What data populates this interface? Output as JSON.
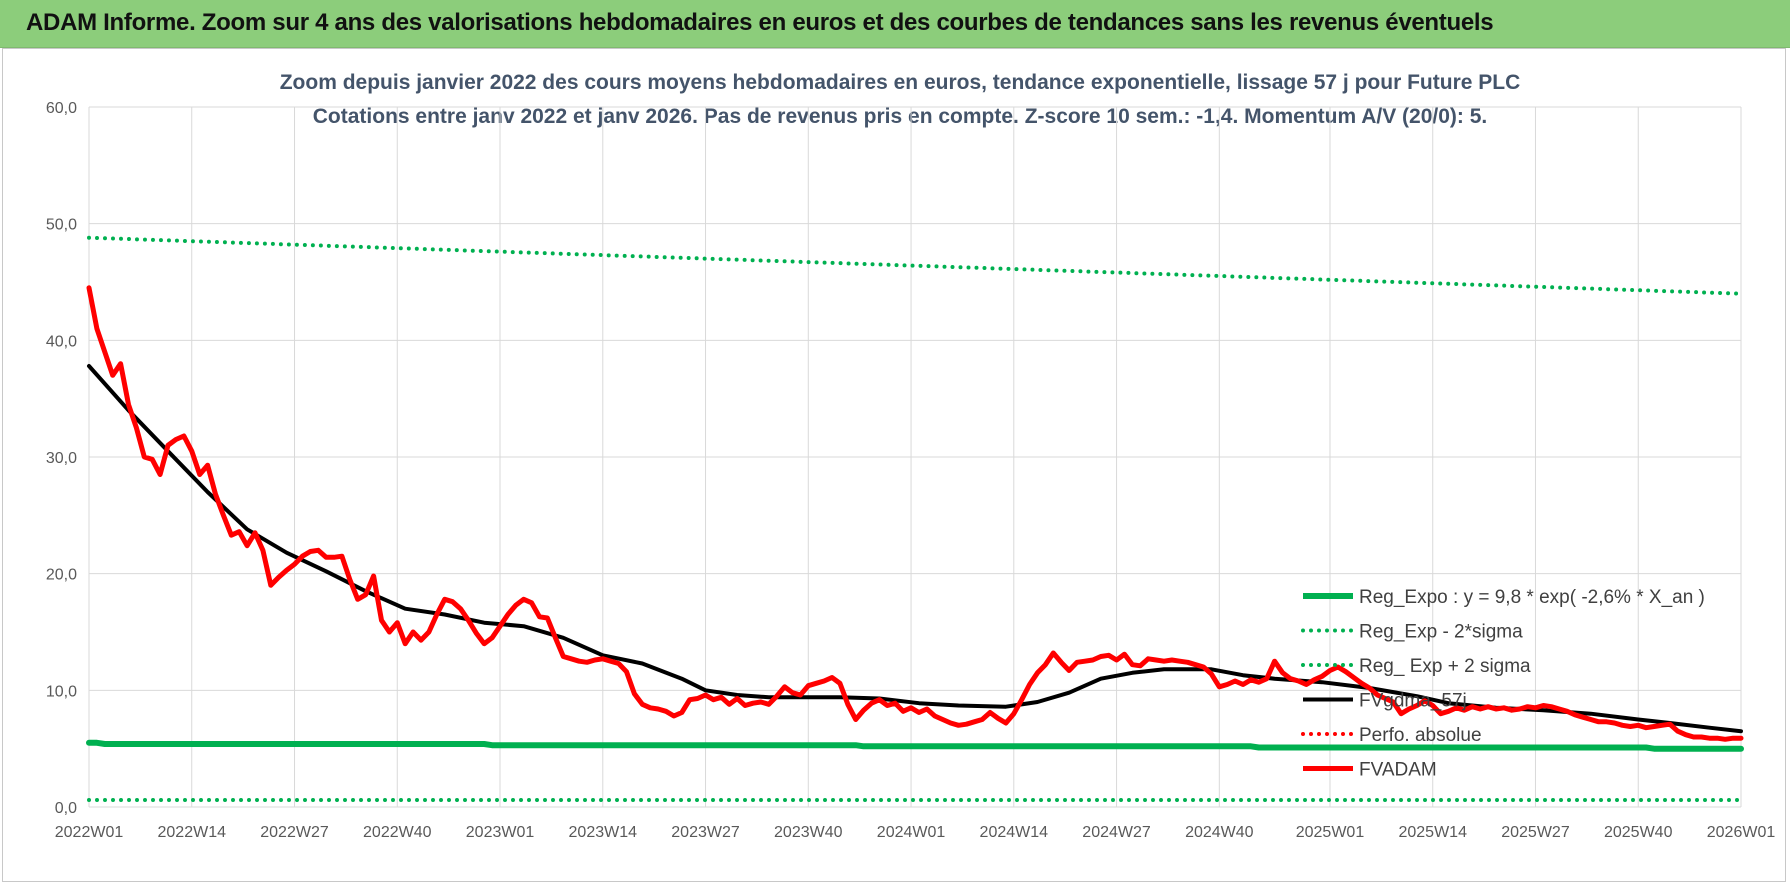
{
  "banner": {
    "title": "ADAM Informe. Zoom sur 4 ans des valorisations hebdomadaires en euros et des courbes de tendances sans les revenus éventuels"
  },
  "chart_data": {
    "type": "line",
    "title": "Zoom depuis janvier 2022 des cours moyens hebdomadaires en euros, tendance exponentielle, lissage 57 j pour Future PLC",
    "subtitle": "Cotations entre janv 2022 et janv 2026. Pas de revenus pris en compte. Z-score 10 sem.: -1,4. Momentum A/V (20/0): 5.",
    "xlabel": "",
    "ylabel": "",
    "ylim": [
      0,
      60
    ],
    "yticks": [
      "0,0",
      "10,0",
      "20,0",
      "30,0",
      "40,0",
      "50,0",
      "60,0"
    ],
    "xlim": [
      0,
      209
    ],
    "xticks": [
      {
        "x": 0,
        "label": "2022W01"
      },
      {
        "x": 13,
        "label": "2022W14"
      },
      {
        "x": 26,
        "label": "2022W27"
      },
      {
        "x": 39,
        "label": "2022W40"
      },
      {
        "x": 52,
        "label": "2023W01"
      },
      {
        "x": 65,
        "label": "2023W14"
      },
      {
        "x": 78,
        "label": "2023W27"
      },
      {
        "x": 91,
        "label": "2023W40"
      },
      {
        "x": 104,
        "label": "2024W01"
      },
      {
        "x": 117,
        "label": "2024W14"
      },
      {
        "x": 130,
        "label": "2024W27"
      },
      {
        "x": 143,
        "label": "2024W40"
      },
      {
        "x": 157,
        "label": "2025W01"
      },
      {
        "x": 170,
        "label": "2025W14"
      },
      {
        "x": 183,
        "label": "2025W27"
      },
      {
        "x": 196,
        "label": "2025W40"
      },
      {
        "x": 209,
        "label": "2026W01"
      }
    ],
    "grid": true,
    "legend_position": "bottom-right",
    "series": [
      {
        "name": "Reg_Expo : y = 9,8 * exp( -2,6% *  X_an )",
        "color": "#00b050",
        "style": "solid",
        "width": 6,
        "points": [
          [
            0,
            5.5
          ],
          [
            1,
            5.5
          ],
          [
            2,
            5.4
          ],
          [
            50,
            5.4
          ],
          [
            51,
            5.3
          ],
          [
            97,
            5.3
          ],
          [
            98,
            5.2
          ],
          [
            147,
            5.2
          ],
          [
            148,
            5.1
          ],
          [
            197,
            5.1
          ],
          [
            198,
            5.0
          ],
          [
            209,
            5.0
          ]
        ]
      },
      {
        "name": "Reg_Exp - 2*sigma",
        "color": "#00b050",
        "style": "dotted",
        "width": 4,
        "points": [
          [
            0,
            0.6
          ],
          [
            209,
            0.6
          ]
        ]
      },
      {
        "name": "Reg_ Exp + 2 sigma",
        "color": "#00b050",
        "style": "dotted",
        "width": 4,
        "points": [
          [
            0,
            48.8
          ],
          [
            209,
            44.0
          ]
        ]
      },
      {
        "name": "FVgdma_57j",
        "color": "#000000",
        "style": "solid",
        "width": 4,
        "points": [
          [
            0,
            37.8
          ],
          [
            5,
            34
          ],
          [
            10,
            30.5
          ],
          [
            15,
            27
          ],
          [
            20,
            23.8
          ],
          [
            25,
            21.8
          ],
          [
            30,
            20.2
          ],
          [
            35,
            18.5
          ],
          [
            40,
            17
          ],
          [
            45,
            16.5
          ],
          [
            50,
            15.8
          ],
          [
            55,
            15.5
          ],
          [
            60,
            14.5
          ],
          [
            65,
            13
          ],
          [
            70,
            12.3
          ],
          [
            75,
            11
          ],
          [
            78,
            10
          ],
          [
            82,
            9.6
          ],
          [
            86,
            9.4
          ],
          [
            95,
            9.4
          ],
          [
            100,
            9.3
          ],
          [
            105,
            8.9
          ],
          [
            110,
            8.7
          ],
          [
            116,
            8.6
          ],
          [
            120,
            9.0
          ],
          [
            124,
            9.8
          ],
          [
            128,
            11.0
          ],
          [
            132,
            11.5
          ],
          [
            136,
            11.8
          ],
          [
            142,
            11.8
          ],
          [
            146,
            11.3
          ],
          [
            150,
            11.0
          ],
          [
            156,
            10.7
          ],
          [
            162,
            10.2
          ],
          [
            168,
            9.5
          ],
          [
            172,
            8.9
          ],
          [
            178,
            8.5
          ],
          [
            184,
            8.3
          ],
          [
            190,
            8.0
          ],
          [
            196,
            7.5
          ],
          [
            200,
            7.2
          ],
          [
            205,
            6.8
          ],
          [
            209,
            6.5
          ]
        ]
      },
      {
        "name": "Perfo. absolue",
        "color": "#ff0000",
        "style": "dotted",
        "width": 4,
        "points": []
      },
      {
        "name": "FVADAM",
        "color": "#ff0000",
        "style": "solid",
        "width": 5,
        "points": [
          [
            0,
            44.5
          ],
          [
            1,
            41
          ],
          [
            2,
            39
          ],
          [
            3,
            37
          ],
          [
            4,
            38
          ],
          [
            5,
            34.5
          ],
          [
            6,
            32.5
          ],
          [
            7,
            30
          ],
          [
            8,
            29.8
          ],
          [
            9,
            28.5
          ],
          [
            10,
            31
          ],
          [
            11,
            31.5
          ],
          [
            12,
            31.8
          ],
          [
            13,
            30.5
          ],
          [
            14,
            28.5
          ],
          [
            15,
            29.3
          ],
          [
            16,
            26.8
          ],
          [
            17,
            25
          ],
          [
            18,
            23.3
          ],
          [
            19,
            23.6
          ],
          [
            20,
            22.4
          ],
          [
            21,
            23.5
          ],
          [
            22,
            22
          ],
          [
            23,
            19
          ],
          [
            24,
            19.7
          ],
          [
            25,
            20.3
          ],
          [
            26,
            20.8
          ],
          [
            27,
            21.5
          ],
          [
            28,
            21.9
          ],
          [
            29,
            22
          ],
          [
            30,
            21.4
          ],
          [
            31,
            21.4
          ],
          [
            32,
            21.5
          ],
          [
            33,
            19.5
          ],
          [
            34,
            17.8
          ],
          [
            35,
            18.2
          ],
          [
            36,
            19.8
          ],
          [
            37,
            16
          ],
          [
            38,
            15
          ],
          [
            39,
            15.8
          ],
          [
            40,
            14
          ],
          [
            41,
            15
          ],
          [
            42,
            14.3
          ],
          [
            43,
            15
          ],
          [
            44,
            16.5
          ],
          [
            45,
            17.8
          ],
          [
            46,
            17.6
          ],
          [
            47,
            17
          ],
          [
            48,
            16
          ],
          [
            49,
            14.9
          ],
          [
            50,
            14
          ],
          [
            51,
            14.5
          ],
          [
            52,
            15.5
          ],
          [
            53,
            16.5
          ],
          [
            54,
            17.3
          ],
          [
            55,
            17.8
          ],
          [
            56,
            17.5
          ],
          [
            57,
            16.3
          ],
          [
            58,
            16.2
          ],
          [
            59,
            14.5
          ],
          [
            60,
            12.9
          ],
          [
            61,
            12.7
          ],
          [
            62,
            12.5
          ],
          [
            63,
            12.4
          ],
          [
            64,
            12.6
          ],
          [
            65,
            12.7
          ],
          [
            66,
            12.5
          ],
          [
            67,
            12.3
          ],
          [
            68,
            11.6
          ],
          [
            69,
            9.7
          ],
          [
            70,
            8.8
          ],
          [
            71,
            8.5
          ],
          [
            72,
            8.4
          ],
          [
            73,
            8.2
          ],
          [
            74,
            7.8
          ],
          [
            75,
            8.1
          ],
          [
            76,
            9.2
          ],
          [
            77,
            9.3
          ],
          [
            78,
            9.6
          ],
          [
            79,
            9.2
          ],
          [
            80,
            9.4
          ],
          [
            81,
            8.8
          ],
          [
            82,
            9.3
          ],
          [
            83,
            8.7
          ],
          [
            84,
            8.9
          ],
          [
            85,
            9.0
          ],
          [
            86,
            8.8
          ],
          [
            87,
            9.5
          ],
          [
            88,
            10.3
          ],
          [
            89,
            9.8
          ],
          [
            90,
            9.6
          ],
          [
            91,
            10.4
          ],
          [
            92,
            10.6
          ],
          [
            93,
            10.8
          ],
          [
            94,
            11.1
          ],
          [
            95,
            10.6
          ],
          [
            96,
            8.8
          ],
          [
            97,
            7.5
          ],
          [
            98,
            8.3
          ],
          [
            99,
            8.9
          ],
          [
            100,
            9.2
          ],
          [
            101,
            8.7
          ],
          [
            102,
            8.9
          ],
          [
            103,
            8.2
          ],
          [
            104,
            8.5
          ],
          [
            105,
            8.1
          ],
          [
            106,
            8.4
          ],
          [
            107,
            7.8
          ],
          [
            108,
            7.5
          ],
          [
            109,
            7.2
          ],
          [
            110,
            7.0
          ],
          [
            111,
            7.1
          ],
          [
            112,
            7.3
          ],
          [
            113,
            7.5
          ],
          [
            114,
            8.1
          ],
          [
            115,
            7.6
          ],
          [
            116,
            7.2
          ],
          [
            117,
            8.0
          ],
          [
            118,
            9.2
          ],
          [
            119,
            10.5
          ],
          [
            120,
            11.5
          ],
          [
            121,
            12.2
          ],
          [
            122,
            13.2
          ],
          [
            123,
            12.4
          ],
          [
            124,
            11.7
          ],
          [
            125,
            12.4
          ],
          [
            126,
            12.5
          ],
          [
            127,
            12.6
          ],
          [
            128,
            12.9
          ],
          [
            129,
            13.0
          ],
          [
            130,
            12.6
          ],
          [
            131,
            13.1
          ],
          [
            132,
            12.2
          ],
          [
            133,
            12.1
          ],
          [
            134,
            12.7
          ],
          [
            135,
            12.6
          ],
          [
            136,
            12.5
          ],
          [
            137,
            12.6
          ],
          [
            138,
            12.5
          ],
          [
            139,
            12.4
          ],
          [
            140,
            12.2
          ],
          [
            141,
            12.0
          ],
          [
            142,
            11.4
          ],
          [
            143,
            10.3
          ],
          [
            144,
            10.5
          ],
          [
            145,
            10.8
          ],
          [
            146,
            10.5
          ],
          [
            147,
            10.9
          ],
          [
            148,
            10.7
          ],
          [
            149,
            11.0
          ],
          [
            150,
            12.5
          ],
          [
            151,
            11.5
          ],
          [
            152,
            11.0
          ],
          [
            153,
            10.8
          ],
          [
            154,
            10.5
          ],
          [
            155,
            10.9
          ],
          [
            156,
            11.2
          ],
          [
            157,
            11.7
          ],
          [
            158,
            12.0
          ],
          [
            159,
            11.6
          ],
          [
            160,
            11.1
          ],
          [
            161,
            10.6
          ],
          [
            162,
            10.2
          ],
          [
            163,
            9.6
          ],
          [
            164,
            9.3
          ],
          [
            165,
            9.0
          ],
          [
            166,
            8.0
          ],
          [
            167,
            8.4
          ],
          [
            168,
            8.7
          ],
          [
            169,
            9.1
          ],
          [
            170,
            8.7
          ],
          [
            171,
            8.0
          ],
          [
            172,
            8.2
          ],
          [
            173,
            8.5
          ],
          [
            174,
            8.3
          ],
          [
            175,
            8.6
          ],
          [
            176,
            8.4
          ],
          [
            177,
            8.6
          ],
          [
            178,
            8.4
          ],
          [
            179,
            8.5
          ],
          [
            180,
            8.3
          ],
          [
            181,
            8.4
          ],
          [
            182,
            8.6
          ],
          [
            183,
            8.5
          ],
          [
            184,
            8.7
          ],
          [
            185,
            8.6
          ],
          [
            186,
            8.4
          ],
          [
            187,
            8.2
          ],
          [
            188,
            7.9
          ],
          [
            189,
            7.7
          ],
          [
            190,
            7.5
          ],
          [
            191,
            7.3
          ],
          [
            192,
            7.3
          ],
          [
            193,
            7.2
          ],
          [
            194,
            7.0
          ],
          [
            195,
            6.9
          ],
          [
            196,
            7.0
          ],
          [
            197,
            6.8
          ],
          [
            198,
            6.9
          ],
          [
            199,
            7.0
          ],
          [
            200,
            7.1
          ],
          [
            201,
            6.5
          ],
          [
            202,
            6.2
          ],
          [
            203,
            6.0
          ],
          [
            204,
            6.0
          ],
          [
            205,
            5.9
          ],
          [
            206,
            5.9
          ],
          [
            207,
            5.8
          ],
          [
            208,
            5.9
          ],
          [
            209,
            5.9
          ]
        ]
      }
    ]
  }
}
